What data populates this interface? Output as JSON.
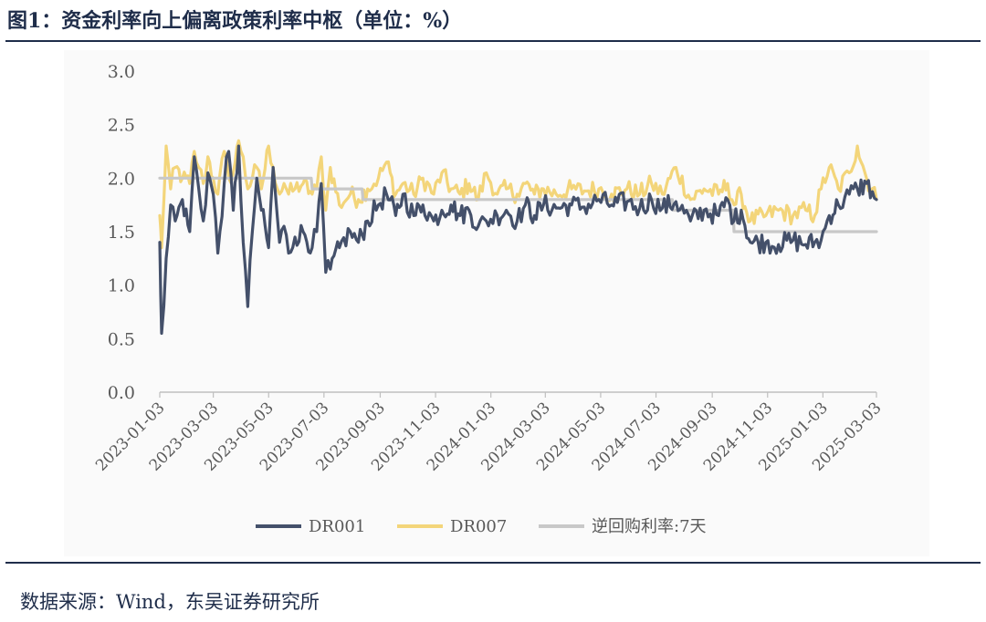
{
  "title": "图1：资金利率向上偏离政策利率中枢（单位：%）",
  "source": "数据来源：Wind，东吴证券研究所",
  "colors": {
    "DR001": "#44506a",
    "DR007": "#f3d57a",
    "policy": "#c8c8c8",
    "axis": "#bfbfbf",
    "text": "#1f2d4a"
  },
  "chart_data": {
    "type": "line",
    "title": "资金利率向上偏离政策利率中枢",
    "ylabel": "",
    "xlabel": "",
    "ylim": [
      0,
      3.0
    ],
    "y_ticks": [
      "0.0",
      "0.5",
      "1.0",
      "1.5",
      "2.0",
      "2.5",
      "3.0"
    ],
    "x_range": [
      "2023-01-03",
      "2025-03-03"
    ],
    "x_ticks": [
      "2023-01-03",
      "2023-03-03",
      "2023-05-03",
      "2023-07-03",
      "2023-09-03",
      "2023-11-03",
      "2024-01-03",
      "2024-03-03",
      "2024-05-03",
      "2024-07-03",
      "2024-09-03",
      "2024-11-03",
      "2025-01-03",
      "2025-03-03"
    ],
    "legend_position": "bottom",
    "grid": false,
    "series": [
      {
        "name": "DR001",
        "style": "noisy",
        "x": [
          "2023-01-03",
          "2023-01-05",
          "2023-01-10",
          "2023-01-15",
          "2023-01-20",
          "2023-01-28",
          "2023-02-05",
          "2023-02-10",
          "2023-02-15",
          "2023-02-20",
          "2023-02-25",
          "2023-03-03",
          "2023-03-08",
          "2023-03-15",
          "2023-03-20",
          "2023-03-25",
          "2023-03-31",
          "2023-04-05",
          "2023-04-10",
          "2023-04-15",
          "2023-04-20",
          "2023-04-25",
          "2023-05-03",
          "2023-05-08",
          "2023-05-15",
          "2023-05-20",
          "2023-05-25",
          "2023-06-01",
          "2023-06-10",
          "2023-06-20",
          "2023-06-25",
          "2023-06-30",
          "2023-07-05",
          "2023-07-10",
          "2023-07-20",
          "2023-08-01",
          "2023-08-10",
          "2023-08-20",
          "2023-09-01",
          "2023-09-10",
          "2023-09-20",
          "2023-09-28",
          "2023-10-10",
          "2023-10-20",
          "2023-11-01",
          "2023-11-10",
          "2023-11-20",
          "2023-11-30",
          "2023-12-10",
          "2023-12-20",
          "2023-12-29",
          "2024-01-10",
          "2024-01-20",
          "2024-02-01",
          "2024-02-10",
          "2024-02-20",
          "2024-03-01",
          "2024-03-15",
          "2024-04-01",
          "2024-04-15",
          "2024-05-01",
          "2024-05-15",
          "2024-06-01",
          "2024-06-15",
          "2024-06-28",
          "2024-07-10",
          "2024-07-25",
          "2024-08-10",
          "2024-08-25",
          "2024-09-10",
          "2024-09-20",
          "2024-09-27",
          "2024-10-05",
          "2024-10-15",
          "2024-11-01",
          "2024-11-15",
          "2024-12-01",
          "2024-12-15",
          "2024-12-25",
          "2025-01-01",
          "2025-01-10",
          "2025-01-20",
          "2025-02-01",
          "2025-02-10",
          "2025-02-20",
          "2025-03-03"
        ],
        "values": [
          1.4,
          0.55,
          1.25,
          1.75,
          1.6,
          1.8,
          1.5,
          2.2,
          1.9,
          1.6,
          2.05,
          1.85,
          1.3,
          1.95,
          2.25,
          1.7,
          2.3,
          1.4,
          0.8,
          1.5,
          2.0,
          1.7,
          1.35,
          2.1,
          1.4,
          1.55,
          1.3,
          1.45,
          1.5,
          1.35,
          1.5,
          1.95,
          1.12,
          1.15,
          1.35,
          1.5,
          1.4,
          1.6,
          1.75,
          1.85,
          1.65,
          1.85,
          1.65,
          1.75,
          1.6,
          1.7,
          1.75,
          1.65,
          1.7,
          1.55,
          1.6,
          1.65,
          1.7,
          1.6,
          1.75,
          1.65,
          1.75,
          1.72,
          1.75,
          1.73,
          1.8,
          1.75,
          1.78,
          1.72,
          1.8,
          1.72,
          1.78,
          1.6,
          1.7,
          1.65,
          1.8,
          1.6,
          1.7,
          1.4,
          1.4,
          1.38,
          1.42,
          1.38,
          1.4,
          1.42,
          1.65,
          1.75,
          1.85,
          1.9,
          1.95,
          1.8
        ]
      },
      {
        "name": "DR007",
        "style": "noisy",
        "x": [
          "2023-01-03",
          "2023-01-05",
          "2023-01-10",
          "2023-01-15",
          "2023-01-20",
          "2023-01-28",
          "2023-02-05",
          "2023-02-10",
          "2023-02-15",
          "2023-02-20",
          "2023-02-25",
          "2023-03-03",
          "2023-03-08",
          "2023-03-15",
          "2023-03-20",
          "2023-03-25",
          "2023-03-31",
          "2023-04-05",
          "2023-04-10",
          "2023-04-15",
          "2023-04-20",
          "2023-04-25",
          "2023-05-03",
          "2023-05-08",
          "2023-05-15",
          "2023-05-20",
          "2023-05-25",
          "2023-06-01",
          "2023-06-10",
          "2023-06-20",
          "2023-06-25",
          "2023-06-30",
          "2023-07-05",
          "2023-07-10",
          "2023-07-20",
          "2023-08-01",
          "2023-08-10",
          "2023-08-20",
          "2023-09-01",
          "2023-09-10",
          "2023-09-20",
          "2023-09-28",
          "2023-10-10",
          "2023-10-20",
          "2023-11-01",
          "2023-11-10",
          "2023-11-20",
          "2023-11-30",
          "2023-12-10",
          "2023-12-20",
          "2023-12-29",
          "2024-01-10",
          "2024-01-20",
          "2024-02-01",
          "2024-02-10",
          "2024-02-20",
          "2024-03-01",
          "2024-03-15",
          "2024-04-01",
          "2024-04-15",
          "2024-05-01",
          "2024-05-15",
          "2024-06-01",
          "2024-06-15",
          "2024-06-28",
          "2024-07-10",
          "2024-07-25",
          "2024-08-10",
          "2024-08-25",
          "2024-09-10",
          "2024-09-20",
          "2024-09-27",
          "2024-10-05",
          "2024-10-15",
          "2024-11-01",
          "2024-11-15",
          "2024-12-01",
          "2024-12-15",
          "2024-12-25",
          "2025-01-01",
          "2025-01-10",
          "2025-01-20",
          "2025-02-01",
          "2025-02-10",
          "2025-02-20",
          "2025-03-03"
        ],
        "values": [
          1.65,
          1.35,
          2.3,
          1.9,
          2.1,
          2.0,
          1.95,
          2.25,
          2.1,
          1.95,
          2.2,
          2.0,
          1.85,
          2.25,
          2.0,
          2.05,
          2.35,
          2.2,
          1.9,
          2.0,
          2.1,
          1.9,
          2.3,
          2.1,
          1.85,
          1.95,
          1.85,
          1.9,
          1.95,
          1.85,
          1.9,
          2.2,
          1.7,
          2.1,
          1.75,
          1.85,
          1.8,
          1.9,
          2.0,
          2.15,
          1.85,
          1.95,
          1.85,
          2.0,
          1.85,
          2.05,
          1.9,
          1.85,
          1.95,
          1.8,
          2.05,
          1.85,
          1.9,
          1.85,
          1.95,
          1.85,
          1.9,
          1.85,
          1.9,
          1.88,
          1.9,
          1.85,
          1.9,
          1.85,
          1.95,
          1.85,
          2.1,
          1.8,
          1.9,
          1.85,
          1.95,
          1.75,
          1.85,
          1.6,
          1.65,
          1.7,
          1.65,
          1.7,
          1.65,
          1.9,
          2.1,
          1.9,
          2.05,
          2.3,
          2.0,
          1.8
        ]
      },
      {
        "name": "逆回购利率:7天",
        "style": "step",
        "x": [
          "2023-01-03",
          "2023-06-19",
          "2023-06-20",
          "2023-08-14",
          "2023-08-15",
          "2024-07-21",
          "2024-07-22",
          "2024-09-26",
          "2024-09-27",
          "2025-03-03"
        ],
        "values": [
          2.0,
          2.0,
          1.9,
          1.9,
          1.8,
          1.8,
          1.7,
          1.7,
          1.5,
          1.5
        ]
      }
    ]
  }
}
